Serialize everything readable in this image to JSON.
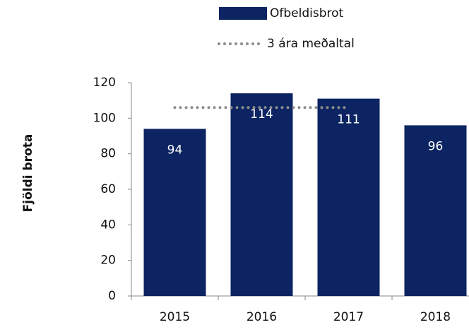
{
  "chart_data": {
    "type": "bar",
    "y_label": "Fjöldi brota",
    "categories": [
      "2015",
      "2016",
      "2017",
      "2018"
    ],
    "series": [
      {
        "name": "Ofbeldisbrot",
        "type": "bar",
        "color": "#0c2461",
        "values": [
          94,
          114,
          111,
          96
        ]
      },
      {
        "name": "3 ára meðaltal",
        "type": "line",
        "color": "#8c8c8c",
        "style": "dotted",
        "values": [
          106,
          106,
          106,
          null
        ]
      }
    ],
    "ylim": [
      0,
      120
    ],
    "yticks": [
      0,
      20,
      40,
      60,
      80,
      100,
      120
    ]
  }
}
